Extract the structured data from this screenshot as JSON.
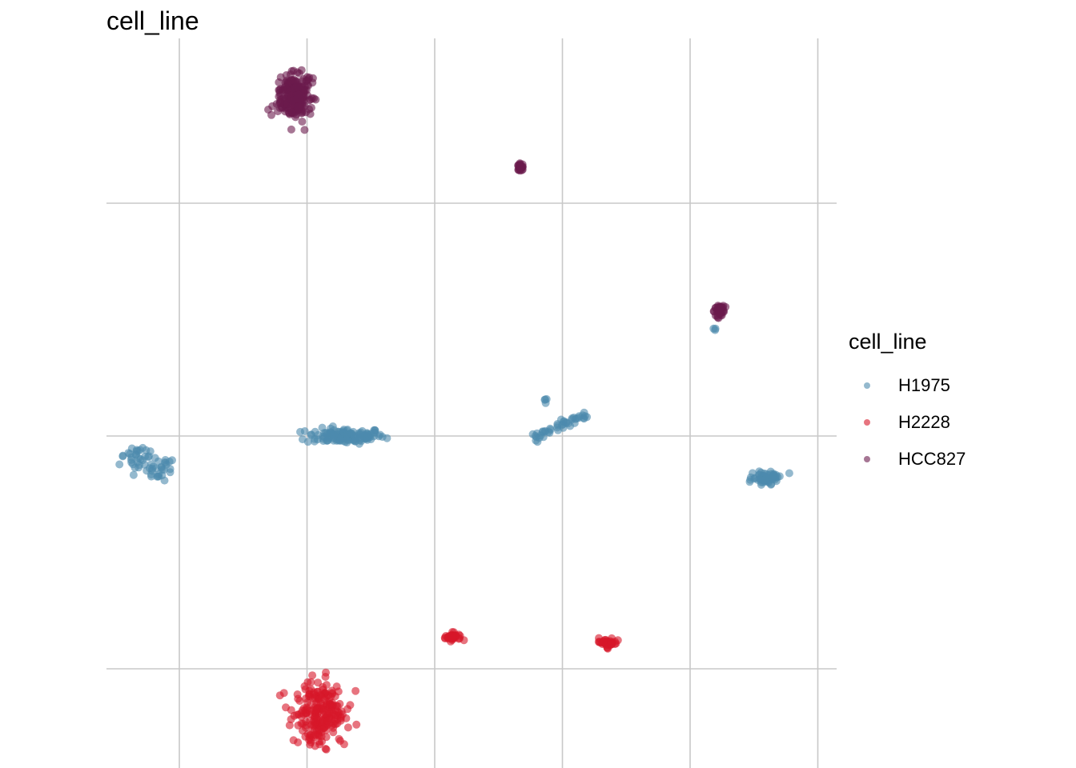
{
  "title": "cell_line",
  "legend": {
    "title": "cell_line",
    "position": "right"
  },
  "chart_data": {
    "type": "scatter",
    "title": "cell_line",
    "xlabel": "",
    "ylabel": "",
    "xlim": [
      -2.6,
      3.1
    ],
    "ylim": [
      -2.4,
      2.8
    ],
    "grid": true,
    "x_gridlines": [
      -2,
      -1,
      0,
      1,
      2,
      3
    ],
    "y_gridlines": [
      -2,
      0,
      2
    ],
    "legend_position": "right",
    "series": [
      {
        "name": "H1975",
        "color": "#4C8AAE",
        "clusters": [
          {
            "center": [
              -2.25,
              -0.22
            ],
            "spread": [
              0.2,
              0.1
            ],
            "shape": "line",
            "angle": -0.35,
            "n": 60
          },
          {
            "center": [
              -0.7,
              0.0
            ],
            "spread": [
              0.28,
              0.06
            ],
            "n": 130
          },
          {
            "center": [
              1.0,
              0.1
            ],
            "spread": [
              0.25,
              0.03
            ],
            "shape": "line",
            "angle": 0.5,
            "n": 45
          },
          {
            "center": [
              0.86,
              0.31
            ],
            "spread": [
              0.02,
              0.02
            ],
            "n": 4
          },
          {
            "center": [
              2.6,
              -0.36
            ],
            "spread": [
              0.1,
              0.05
            ],
            "n": 60
          },
          {
            "center": [
              2.2,
              0.92
            ],
            "spread": [
              0.015,
              0.01
            ],
            "n": 3
          }
        ]
      },
      {
        "name": "H2228",
        "color": "#D7182A",
        "clusters": [
          {
            "center": [
              -0.9,
              -2.4
            ],
            "spread": [
              0.17,
              0.25
            ],
            "n": 220
          },
          {
            "center": [
              0.14,
              -1.73
            ],
            "spread": [
              0.06,
              0.03
            ],
            "n": 40
          },
          {
            "center": [
              1.35,
              -1.78
            ],
            "spread": [
              0.06,
              0.04
            ],
            "n": 40
          }
        ]
      },
      {
        "name": "HCC827",
        "color": "#6A1B4D",
        "clusters": [
          {
            "center": [
              -1.1,
              2.92
            ],
            "spread": [
              0.11,
              0.19
            ],
            "n": 220
          },
          {
            "center": [
              0.67,
              2.32
            ],
            "spread": [
              0.02,
              0.05
            ],
            "n": 25
          },
          {
            "center": [
              2.23,
              1.08
            ],
            "spread": [
              0.04,
              0.05
            ],
            "n": 40
          }
        ]
      }
    ]
  }
}
